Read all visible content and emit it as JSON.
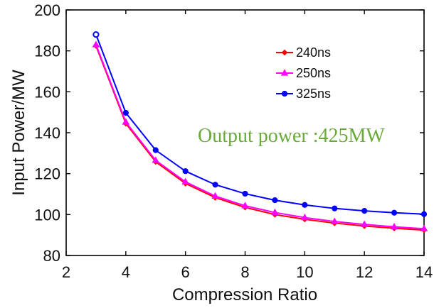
{
  "chart_data": {
    "type": "line",
    "xlabel": "Compression Ratio",
    "ylabel": "Input Power/MW",
    "xlim": [
      2,
      14
    ],
    "ylim": [
      80,
      200
    ],
    "xticks": [
      "2",
      "4",
      "6",
      "8",
      "10",
      "12",
      "14"
    ],
    "yticks": [
      "80",
      "100",
      "120",
      "140",
      "160",
      "180",
      "200"
    ],
    "x": [
      3,
      4,
      5,
      6,
      7,
      8,
      9,
      10,
      11,
      12,
      13,
      14
    ],
    "series": [
      {
        "name": "240ns",
        "color": "#ff0000",
        "marker": "diamond",
        "values": [
          182.5,
          144.5,
          125.8,
          115.2,
          108.3,
          103.5,
          100.0,
          97.7,
          95.8,
          94.4,
          93.3,
          92.4
        ]
      },
      {
        "name": "250ns",
        "color": "#ff00ff",
        "marker": "triangle",
        "values": [
          183.0,
          145.2,
          126.5,
          116.0,
          109.0,
          104.3,
          101.0,
          98.5,
          96.6,
          95.2,
          94.0,
          93.1
        ]
      },
      {
        "name": "325ns",
        "color": "#0000ff",
        "marker": "circle",
        "values": [
          188.0,
          149.7,
          131.5,
          121.2,
          114.6,
          110.2,
          107.0,
          104.7,
          103.0,
          101.8,
          100.9,
          100.2
        ]
      }
    ],
    "legend_position": "top-right",
    "grid": false,
    "annotation": {
      "text": "Output power :425MW",
      "color": "#6aaa3a"
    }
  }
}
